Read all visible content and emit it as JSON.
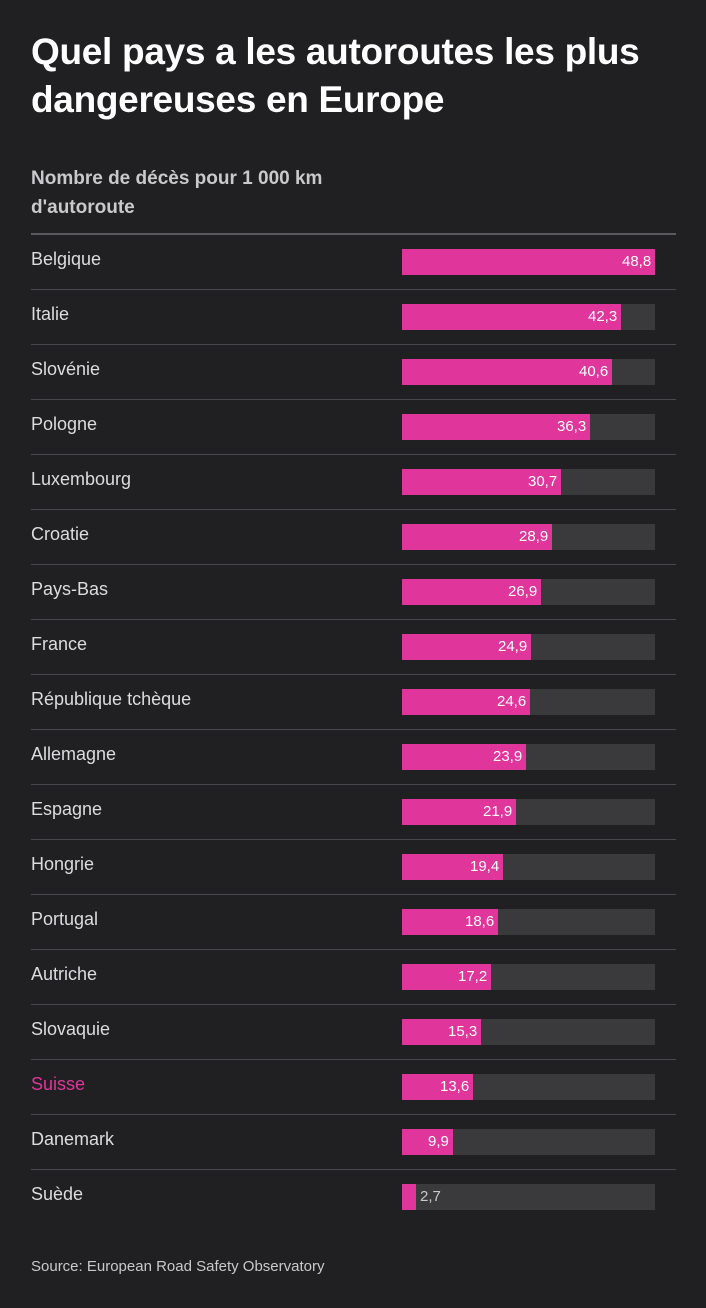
{
  "title": "Quel pays a les autoroutes les plus dangereuses en Europe",
  "subtitle": "Nombre de décès pour 1 000 km d'autoroute",
  "source": "Source: European Road Safety Observatory",
  "colors": {
    "background": "#202022",
    "bar": "#e0359b",
    "track": "#3a3a3d",
    "highlight": "#e0359b"
  },
  "chart_data": {
    "type": "bar",
    "orientation": "horizontal",
    "title": "Quel pays a les autoroutes les plus dangereuses en Europe",
    "subtitle": "Nombre de décès pour 1 000 km d'autoroute",
    "categories": [
      "Belgique",
      "Italie",
      "Slovénie",
      "Pologne",
      "Luxembourg",
      "Croatie",
      "Pays-Bas",
      "France",
      "République tchèque",
      "Allemagne",
      "Espagne",
      "Hongrie",
      "Portugal",
      "Autriche",
      "Slovaquie",
      "Suisse",
      "Danemark",
      "Suède"
    ],
    "values": [
      48.8,
      42.3,
      40.6,
      36.3,
      30.7,
      28.9,
      26.9,
      24.9,
      24.6,
      23.9,
      21.9,
      19.4,
      18.6,
      17.2,
      15.3,
      13.6,
      9.9,
      2.7
    ],
    "value_labels": [
      "48,8",
      "42,3",
      "40,6",
      "36,3",
      "30,7",
      "28,9",
      "26,9",
      "24,9",
      "24,6",
      "23,9",
      "21,9",
      "19,4",
      "18,6",
      "17,2",
      "15,3",
      "13,6",
      "9,9",
      "2,7"
    ],
    "highlighted_category": "Suisse",
    "xlim": [
      0,
      48.8
    ],
    "grid": false,
    "legend": "none"
  }
}
